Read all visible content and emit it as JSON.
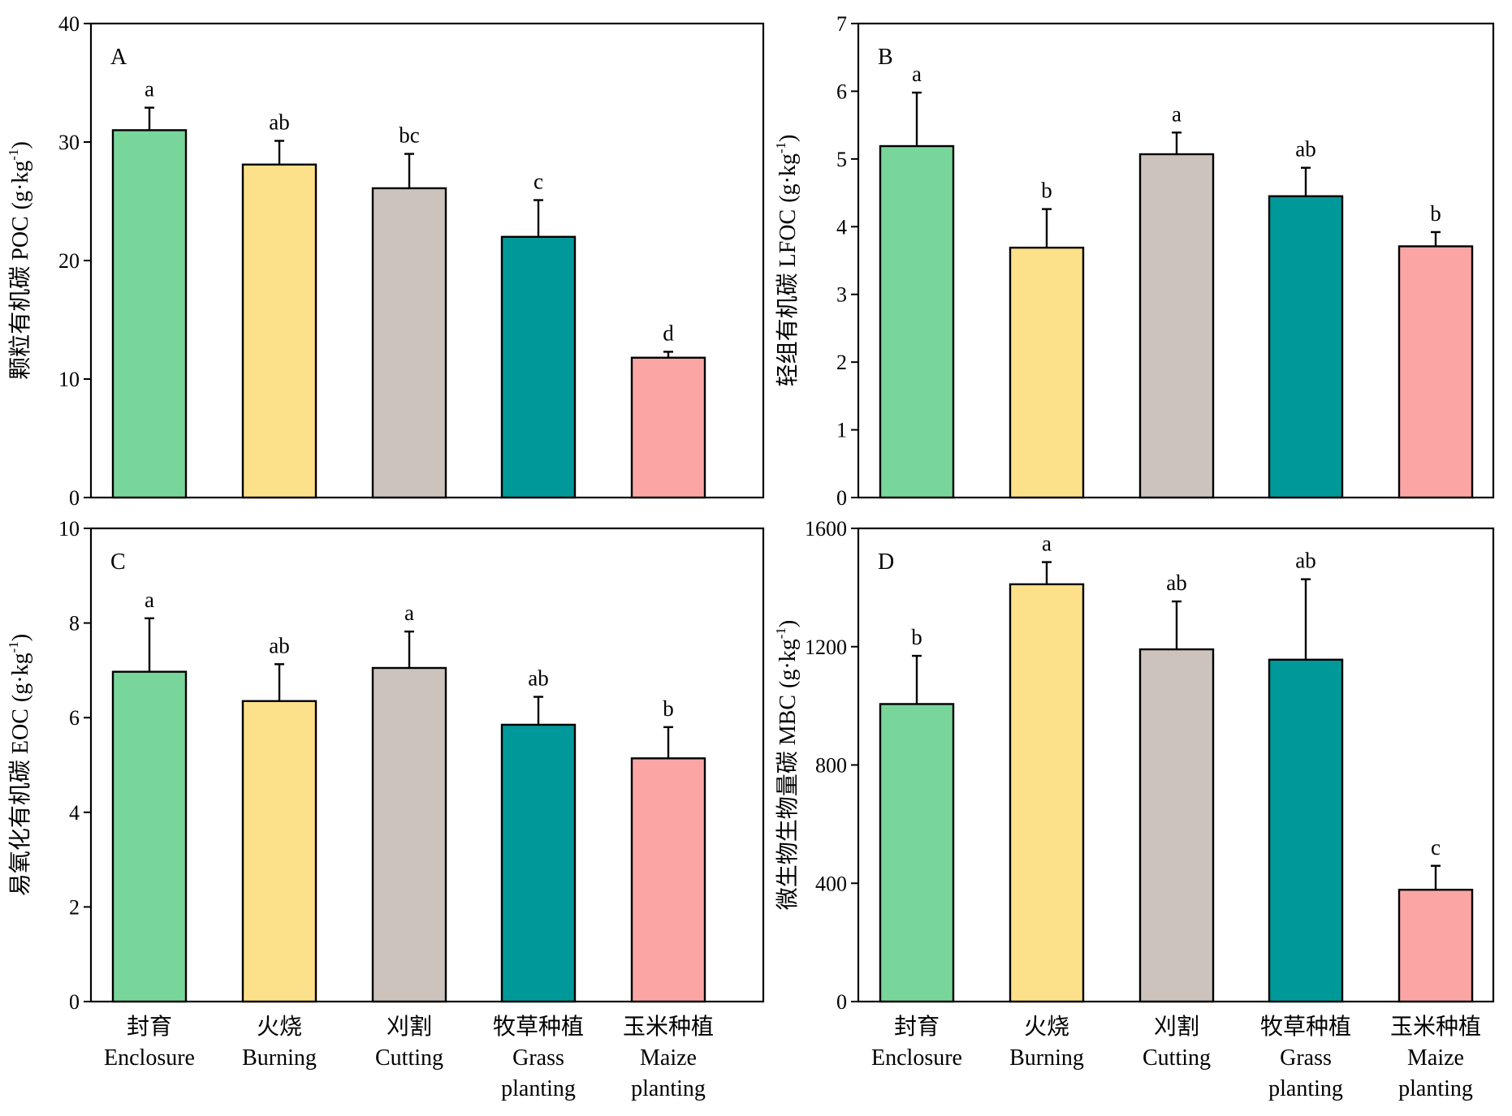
{
  "categories": [
    {
      "zh": "封育",
      "en": [
        "Enclosure"
      ]
    },
    {
      "zh": "火烧",
      "en": [
        "Burning"
      ]
    },
    {
      "zh": "刈割",
      "en": [
        "Cutting"
      ]
    },
    {
      "zh": "牧草种植",
      "en": [
        "Grass",
        "planting"
      ]
    },
    {
      "zh": "玉米种植",
      "en": [
        "Maize",
        "planting"
      ]
    }
  ],
  "colors": [
    "#79d69a",
    "#fde08a",
    "#ccc3bd",
    "#00999a",
    "#fba5a5"
  ],
  "chart_data": [
    {
      "type": "bar",
      "panel": "A",
      "ylabel_zh": "颗粒有机碳 POC",
      "ylabel_unit": "(g·kg",
      "ylabel_sup": "-1",
      "ylabel_close": ")",
      "ylim": [
        0,
        40
      ],
      "yticks": [
        0,
        10,
        20,
        30,
        40
      ],
      "values": [
        31.0,
        28.1,
        26.1,
        22.0,
        11.8
      ],
      "errors": [
        1.9,
        2.0,
        2.9,
        3.1,
        0.5
      ],
      "letters": [
        "a",
        "ab",
        "bc",
        "c",
        "d"
      ]
    },
    {
      "type": "bar",
      "panel": "B",
      "ylabel_zh": "轻组有机碳 LFOC",
      "ylabel_unit": "(g·kg",
      "ylabel_sup": "-1",
      "ylabel_close": ")",
      "ylim": [
        0,
        7
      ],
      "yticks": [
        0,
        1,
        2,
        3,
        4,
        5,
        6,
        7
      ],
      "values": [
        5.19,
        3.69,
        5.07,
        4.45,
        3.71
      ],
      "errors": [
        0.79,
        0.57,
        0.32,
        0.42,
        0.21
      ],
      "letters": [
        "a",
        "b",
        "a",
        "ab",
        "b"
      ]
    },
    {
      "type": "bar",
      "panel": "C",
      "ylabel_zh": "易氧化有机碳 EOC",
      "ylabel_unit": "(g·kg",
      "ylabel_sup": "-1",
      "ylabel_close": ")",
      "ylim": [
        0,
        10
      ],
      "yticks": [
        0,
        2,
        4,
        6,
        8,
        10
      ],
      "values": [
        6.97,
        6.35,
        7.05,
        5.85,
        5.14
      ],
      "errors": [
        1.13,
        0.78,
        0.77,
        0.59,
        0.66
      ],
      "letters": [
        "a",
        "ab",
        "a",
        "ab",
        "b"
      ]
    },
    {
      "type": "bar",
      "panel": "D",
      "ylabel_zh": "微生物生物量碳 MBC",
      "ylabel_unit": "(g·kg",
      "ylabel_sup": "-1",
      "ylabel_close": ")",
      "ylim": [
        0,
        1600
      ],
      "yticks": [
        0,
        400,
        800,
        1200,
        1600
      ],
      "values": [
        1006,
        1411,
        1191,
        1156,
        378
      ],
      "errors": [
        163,
        75,
        162,
        272,
        81
      ],
      "letters": [
        "b",
        "a",
        "ab",
        "ab",
        "c"
      ]
    }
  ]
}
